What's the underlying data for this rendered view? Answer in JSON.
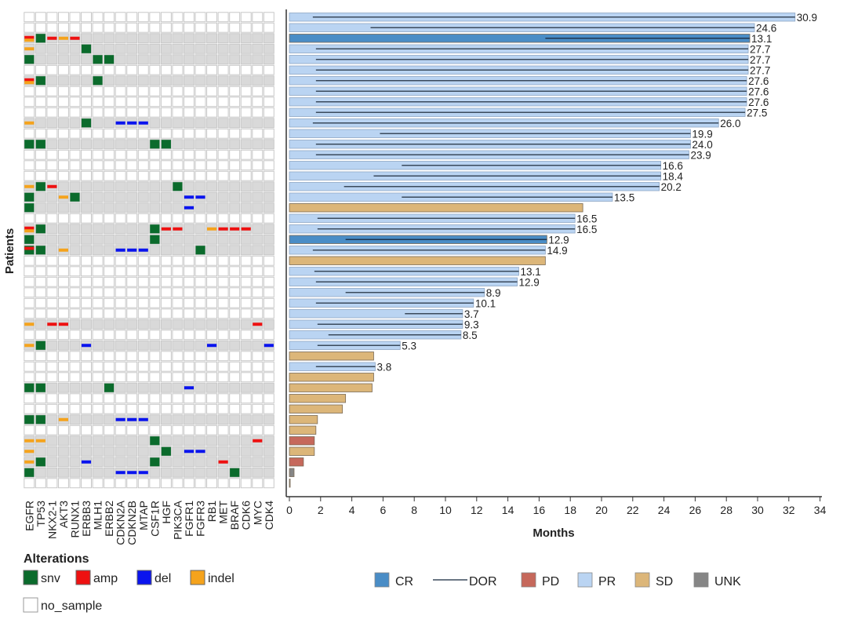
{
  "chart_data": [
    {
      "type": "heatmap",
      "ylabel": "Patients",
      "genes": [
        "EGFR",
        "TP53",
        "NKX2-1",
        "AKT3",
        "RUNX1",
        "ERBB3",
        "MLH1",
        "ERBB2",
        "CDKN2A",
        "CDKN2B",
        "MTAP",
        "CSF1R",
        "HGF",
        "PIK3CA",
        "FGFR1",
        "FGFR3",
        "RB1",
        "MET",
        "BRAF",
        "CDK6",
        "MYC",
        "CDK4"
      ],
      "legend_title": "Alterations",
      "legend": [
        {
          "key": "snv",
          "label": "snv",
          "color": "#0b6b2c"
        },
        {
          "key": "amp",
          "label": "amp",
          "color": "#ee1111"
        },
        {
          "key": "del",
          "label": "del",
          "color": "#0a14ee"
        },
        {
          "key": "indel",
          "label": "indel",
          "color": "#f5a31c"
        },
        {
          "key": "no_sample",
          "label": "no_sample",
          "color": "#ffffff"
        }
      ],
      "colors": {
        "tested_no_alteration": "#d9d9d9",
        "no_sample": "#ffffff"
      },
      "rows": [
        {
          "sample": false
        },
        {
          "sample": false
        },
        {
          "sample": true,
          "alts": {
            "EGFR": [
              "amp",
              "indel"
            ],
            "TP53": [
              "snv"
            ],
            "NKX2-1": [
              "amp"
            ],
            "AKT3": [
              "indel"
            ],
            "RUNX1": [
              "amp"
            ]
          }
        },
        {
          "sample": true,
          "alts": {
            "EGFR": [
              "indel"
            ],
            "ERBB3": [
              "snv"
            ]
          }
        },
        {
          "sample": true,
          "alts": {
            "EGFR": [
              "snv"
            ],
            "MLH1": [
              "snv"
            ],
            "ERBB2": [
              "snv"
            ]
          }
        },
        {
          "sample": false
        },
        {
          "sample": true,
          "alts": {
            "EGFR": [
              "amp",
              "indel"
            ],
            "TP53": [
              "snv"
            ],
            "MLH1": [
              "snv"
            ]
          }
        },
        {
          "sample": false
        },
        {
          "sample": false
        },
        {
          "sample": false
        },
        {
          "sample": true,
          "alts": {
            "EGFR": [
              "indel"
            ],
            "ERBB3": [
              "snv"
            ],
            "CDKN2A": [
              "del"
            ],
            "CDKN2B": [
              "del"
            ],
            "MTAP": [
              "del"
            ]
          }
        },
        {
          "sample": false
        },
        {
          "sample": true,
          "alts": {
            "EGFR": [
              "snv"
            ],
            "TP53": [
              "snv"
            ],
            "CSF1R": [
              "snv"
            ],
            "HGF": [
              "snv"
            ]
          }
        },
        {
          "sample": false
        },
        {
          "sample": false
        },
        {
          "sample": false
        },
        {
          "sample": true,
          "alts": {
            "EGFR": [
              "indel"
            ],
            "TP53": [
              "snv"
            ],
            "NKX2-1": [
              "amp"
            ],
            "PIK3CA": [
              "snv"
            ]
          }
        },
        {
          "sample": true,
          "alts": {
            "EGFR": [
              "snv"
            ],
            "AKT3": [
              "indel"
            ],
            "RUNX1": [
              "snv"
            ],
            "FGFR1": [
              "del"
            ],
            "FGFR3": [
              "del"
            ]
          }
        },
        {
          "sample": true,
          "alts": {
            "EGFR": [
              "snv"
            ],
            "FGFR1": [
              "del"
            ]
          }
        },
        {
          "sample": false
        },
        {
          "sample": true,
          "alts": {
            "EGFR": [
              "amp",
              "indel"
            ],
            "TP53": [
              "snv"
            ],
            "CSF1R": [
              "snv"
            ],
            "HGF": [
              "amp"
            ],
            "PIK3CA": [
              "amp"
            ],
            "RB1": [
              "indel"
            ],
            "MET": [
              "amp"
            ],
            "BRAF": [
              "amp"
            ],
            "CDK6": [
              "amp"
            ]
          }
        },
        {
          "sample": true,
          "alts": {
            "EGFR": [
              "snv"
            ],
            "CSF1R": [
              "snv"
            ]
          }
        },
        {
          "sample": true,
          "alts": {
            "EGFR": [
              "amp",
              "snv"
            ],
            "TP53": [
              "snv"
            ],
            "AKT3": [
              "indel"
            ],
            "CDKN2A": [
              "del"
            ],
            "CDKN2B": [
              "del"
            ],
            "MTAP": [
              "del"
            ],
            "FGFR3": [
              "snv"
            ]
          }
        },
        {
          "sample": false
        },
        {
          "sample": false
        },
        {
          "sample": false
        },
        {
          "sample": false
        },
        {
          "sample": false
        },
        {
          "sample": false
        },
        {
          "sample": true,
          "alts": {
            "EGFR": [
              "indel"
            ],
            "NKX2-1": [
              "amp"
            ],
            "AKT3": [
              "amp"
            ],
            "MYC": [
              "amp"
            ]
          }
        },
        {
          "sample": false
        },
        {
          "sample": true,
          "alts": {
            "EGFR": [
              "indel"
            ],
            "TP53": [
              "snv"
            ],
            "ERBB3": [
              "del"
            ],
            "RB1": [
              "del"
            ],
            "CDK4": [
              "del"
            ]
          }
        },
        {
          "sample": false
        },
        {
          "sample": false
        },
        {
          "sample": false
        },
        {
          "sample": true,
          "alts": {
            "EGFR": [
              "snv"
            ],
            "TP53": [
              "snv"
            ],
            "ERBB2": [
              "snv"
            ],
            "FGFR1": [
              "del"
            ]
          }
        },
        {
          "sample": false
        },
        {
          "sample": false
        },
        {
          "sample": true,
          "alts": {
            "EGFR": [
              "snv"
            ],
            "TP53": [
              "snv"
            ],
            "AKT3": [
              "indel"
            ],
            "CDKN2A": [
              "del"
            ],
            "CDKN2B": [
              "del"
            ],
            "MTAP": [
              "del"
            ]
          }
        },
        {
          "sample": false
        },
        {
          "sample": true,
          "alts": {
            "EGFR": [
              "indel"
            ],
            "TP53": [
              "indel"
            ],
            "CSF1R": [
              "snv"
            ],
            "MYC": [
              "amp"
            ]
          }
        },
        {
          "sample": true,
          "alts": {
            "EGFR": [
              "indel"
            ],
            "HGF": [
              "snv"
            ],
            "FGFR1": [
              "del"
            ],
            "FGFR3": [
              "del"
            ]
          }
        },
        {
          "sample": true,
          "alts": {
            "EGFR": [
              "indel"
            ],
            "TP53": [
              "snv"
            ],
            "ERBB3": [
              "del"
            ],
            "CSF1R": [
              "snv"
            ],
            "MET": [
              "amp"
            ]
          }
        },
        {
          "sample": true,
          "alts": {
            "EGFR": [
              "snv"
            ],
            "CDKN2A": [
              "del"
            ],
            "CDKN2B": [
              "del"
            ],
            "MTAP": [
              "del"
            ],
            "BRAF": [
              "snv"
            ]
          }
        },
        {
          "sample": false
        }
      ]
    },
    {
      "type": "bar",
      "orientation": "horizontal",
      "xlabel": "Months",
      "xlim": [
        0,
        34
      ],
      "xticks": [
        0,
        2,
        4,
        6,
        8,
        10,
        12,
        14,
        16,
        18,
        20,
        22,
        24,
        26,
        28,
        30,
        32,
        34
      ],
      "grid": false,
      "legend_position": "bottom",
      "legend": [
        {
          "key": "CR",
          "label": "CR",
          "color": "#4a8dc6",
          "kind": "box"
        },
        {
          "key": "DOR",
          "label": "DOR",
          "color": "#3a4a5c",
          "kind": "line"
        },
        {
          "key": "PD",
          "label": "PD",
          "color": "#c6685b",
          "kind": "box"
        },
        {
          "key": "PR",
          "label": "PR",
          "color": "#bad4f2",
          "kind": "box"
        },
        {
          "key": "SD",
          "label": "SD",
          "color": "#dcb679",
          "kind": "box"
        },
        {
          "key": "UNK",
          "label": "UNK",
          "color": "#868686",
          "kind": "box"
        }
      ],
      "patients": [
        {
          "response": "PR",
          "months": 32.4,
          "dor": "30.9"
        },
        {
          "response": "PR",
          "months": 29.8,
          "dor": "24.6"
        },
        {
          "response": "CR",
          "months": 29.5,
          "dor": "13.1"
        },
        {
          "response": "PR",
          "months": 29.4,
          "dor": "27.7"
        },
        {
          "response": "PR",
          "months": 29.4,
          "dor": "27.7"
        },
        {
          "response": "PR",
          "months": 29.4,
          "dor": "27.7"
        },
        {
          "response": "PR",
          "months": 29.3,
          "dor": "27.6"
        },
        {
          "response": "PR",
          "months": 29.3,
          "dor": "27.6"
        },
        {
          "response": "PR",
          "months": 29.3,
          "dor": "27.6"
        },
        {
          "response": "PR",
          "months": 29.2,
          "dor": "27.5"
        },
        {
          "response": "PR",
          "months": 27.5,
          "dor": "26.0"
        },
        {
          "response": "PR",
          "months": 25.7,
          "dor": "19.9"
        },
        {
          "response": "PR",
          "months": 25.7,
          "dor": "24.0"
        },
        {
          "response": "PR",
          "months": 25.6,
          "dor": "23.9"
        },
        {
          "response": "PR",
          "months": 23.8,
          "dor": "16.6"
        },
        {
          "response": "PR",
          "months": 23.8,
          "dor": "18.4"
        },
        {
          "response": "PR",
          "months": 23.7,
          "dor": "20.2"
        },
        {
          "response": "PR",
          "months": 20.7,
          "dor": "13.5"
        },
        {
          "response": "SD",
          "months": 18.8
        },
        {
          "response": "PR",
          "months": 18.3,
          "dor": "16.5"
        },
        {
          "response": "PR",
          "months": 18.3,
          "dor": "16.5"
        },
        {
          "response": "CR",
          "months": 16.5,
          "dor": "12.9"
        },
        {
          "response": "PR",
          "months": 16.4,
          "dor": "14.9"
        },
        {
          "response": "SD",
          "months": 16.4
        },
        {
          "response": "PR",
          "months": 14.7,
          "dor": "13.1"
        },
        {
          "response": "PR",
          "months": 14.6,
          "dor": "12.9"
        },
        {
          "response": "PR",
          "months": 12.5,
          "dor": "8.9"
        },
        {
          "response": "PR",
          "months": 11.8,
          "dor": "10.1"
        },
        {
          "response": "PR",
          "months": 11.1,
          "dor": "3.7"
        },
        {
          "response": "PR",
          "months": 11.1,
          "dor": "9.3"
        },
        {
          "response": "PR",
          "months": 11.0,
          "dor": "8.5"
        },
        {
          "response": "PR",
          "months": 7.1,
          "dor": "5.3"
        },
        {
          "response": "SD",
          "months": 5.4
        },
        {
          "response": "PR",
          "months": 5.5,
          "dor": "3.8"
        },
        {
          "response": "SD",
          "months": 5.4
        },
        {
          "response": "SD",
          "months": 5.3
        },
        {
          "response": "SD",
          "months": 3.6
        },
        {
          "response": "SD",
          "months": 3.4
        },
        {
          "response": "SD",
          "months": 1.8
        },
        {
          "response": "SD",
          "months": 1.7
        },
        {
          "response": "PD",
          "months": 1.6
        },
        {
          "response": "SD",
          "months": 1.6
        },
        {
          "response": "PD",
          "months": 0.9
        },
        {
          "response": "UNK",
          "months": 0.3
        },
        {
          "response": "UNK",
          "months": 0.05
        }
      ]
    }
  ]
}
